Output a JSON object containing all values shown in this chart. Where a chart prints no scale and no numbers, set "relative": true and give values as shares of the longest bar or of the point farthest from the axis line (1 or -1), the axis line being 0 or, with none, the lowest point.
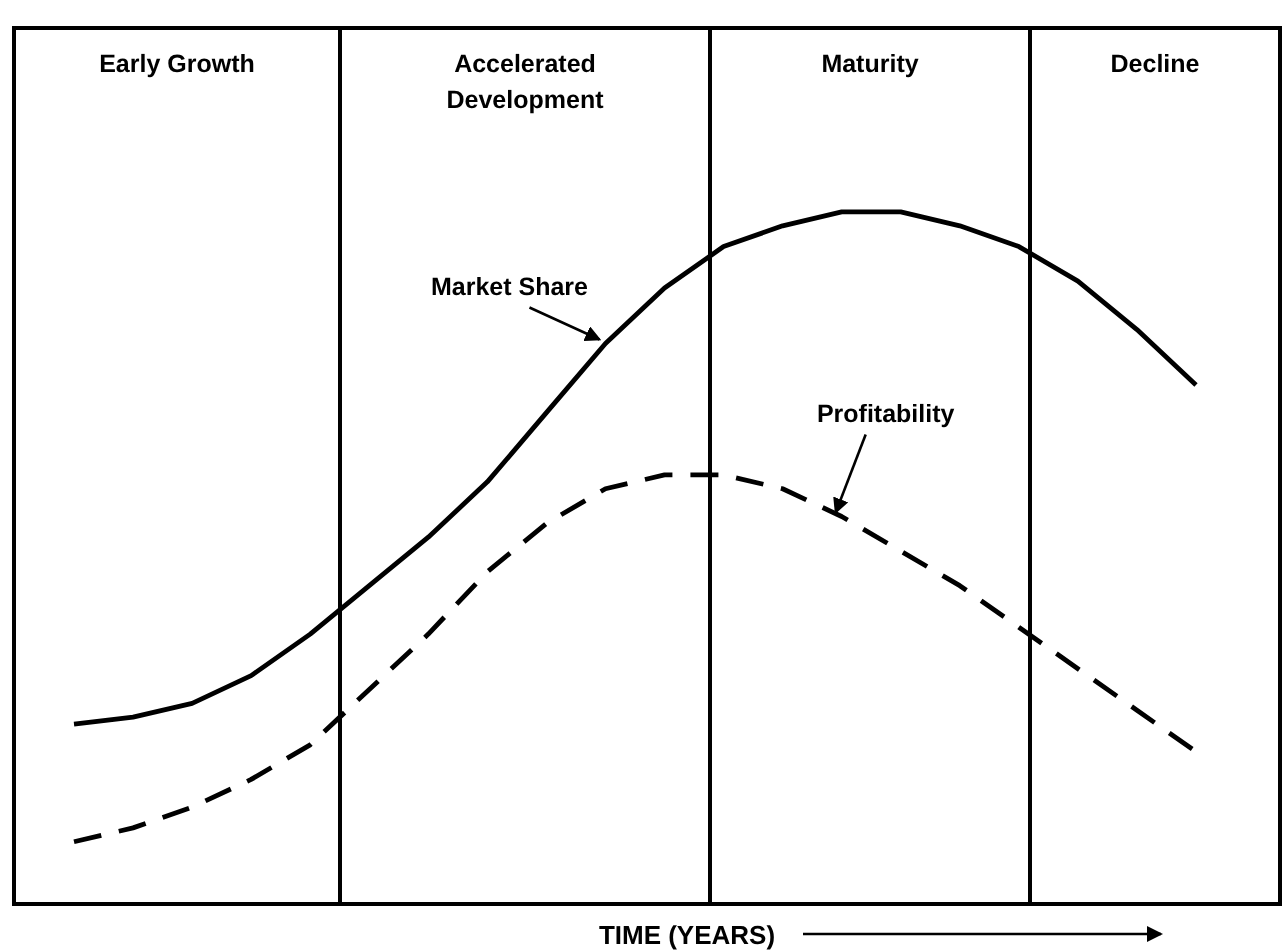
{
  "chart_data": {
    "type": "line",
    "relative": true,
    "xlabel": "TIME (YEARS)",
    "grid": false,
    "legend": false,
    "annotations": [
      "Early Growth",
      "Accelerated Development",
      "Maturity",
      "Decline"
    ],
    "categories": [
      null,
      null,
      null,
      null,
      null,
      null,
      null,
      null,
      null,
      null,
      null,
      null,
      null,
      null,
      null,
      null,
      null,
      null,
      null,
      null
    ],
    "series": [
      {
        "name": "Market Share",
        "color": "#000000",
        "line_style": "solid",
        "values": [
          0.26,
          0.27,
          0.29,
          0.33,
          0.39,
          0.46,
          0.53,
          0.61,
          0.71,
          0.81,
          0.89,
          0.95,
          0.98,
          1,
          1,
          0.98,
          0.95,
          0.9,
          0.83,
          0.75
        ]
      },
      {
        "name": "Profitability",
        "color": "#000000",
        "line_style": "dashed",
        "values": [
          0.09,
          0.11,
          0.14,
          0.18,
          0.23,
          0.31,
          0.39,
          0.48,
          0.55,
          0.6,
          0.62,
          0.62,
          0.6,
          0.56,
          0.51,
          0.46,
          0.4,
          0.34,
          0.28,
          0.22
        ]
      }
    ]
  }
}
